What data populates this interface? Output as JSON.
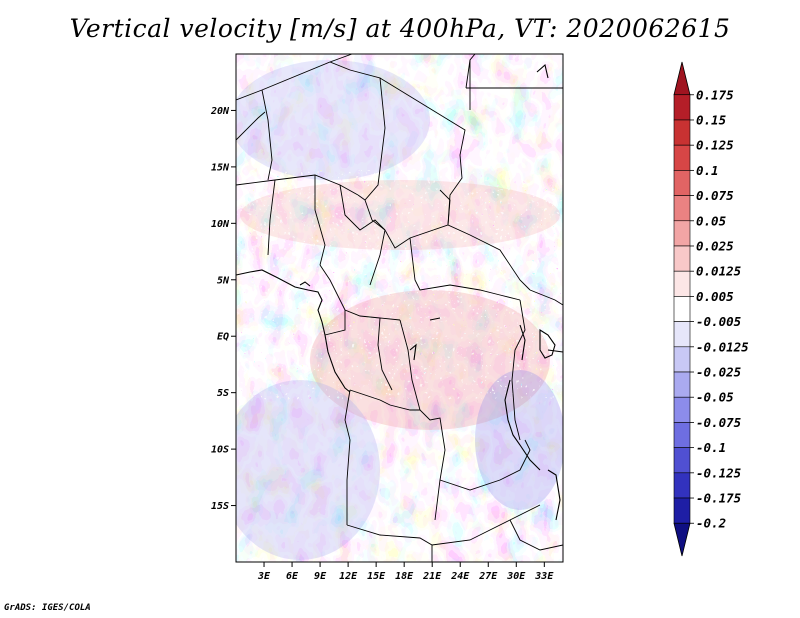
{
  "title": "Vertical velocity [m/s] at 400hPa, VT: 2020062615",
  "credit": "GrADS: IGES/COLA",
  "map": {
    "lon_range": [
      0,
      35
    ],
    "lat_range": [
      -20,
      25
    ],
    "lat_labels": [
      {
        "lat": 20,
        "text": "20N"
      },
      {
        "lat": 15,
        "text": "15N"
      },
      {
        "lat": 10,
        "text": "10N"
      },
      {
        "lat": 5,
        "text": "5N"
      },
      {
        "lat": 0,
        "text": "EQ"
      },
      {
        "lat": -5,
        "text": "5S"
      },
      {
        "lat": -10,
        "text": "10S"
      },
      {
        "lat": -15,
        "text": "15S"
      }
    ],
    "lon_labels": [
      {
        "lon": 3,
        "text": "3E"
      },
      {
        "lon": 6,
        "text": "6E"
      },
      {
        "lon": 9,
        "text": "9E"
      },
      {
        "lon": 12,
        "text": "12E"
      },
      {
        "lon": 15,
        "text": "15E"
      },
      {
        "lon": 18,
        "text": "18E"
      },
      {
        "lon": 21,
        "text": "21E"
      },
      {
        "lon": 24,
        "text": "24E"
      },
      {
        "lon": 27,
        "text": "27E"
      },
      {
        "lon": 30,
        "text": "30E"
      },
      {
        "lon": 33,
        "text": "33E"
      }
    ]
  },
  "colorbar": {
    "labels": [
      "0.175",
      "0.15",
      "0.125",
      "0.1",
      "0.075",
      "0.05",
      "0.025",
      "0.0125",
      "0.005",
      "-0.005",
      "-0.0125",
      "-0.025",
      "-0.05",
      "-0.075",
      "-0.1",
      "-0.125",
      "-0.175",
      "-0.2"
    ],
    "colors": [
      "#a01420",
      "#b41e28",
      "#c83232",
      "#d74646",
      "#e16464",
      "#ea8282",
      "#f2a5a5",
      "#f8c8c8",
      "#fce6e6",
      "#ffffff",
      "#e6e6fa",
      "#c8c8f5",
      "#aaaaf0",
      "#8c8ceb",
      "#6e6ee1",
      "#5050d2",
      "#3232be",
      "#1e1ea5",
      "#0f0f82"
    ]
  }
}
